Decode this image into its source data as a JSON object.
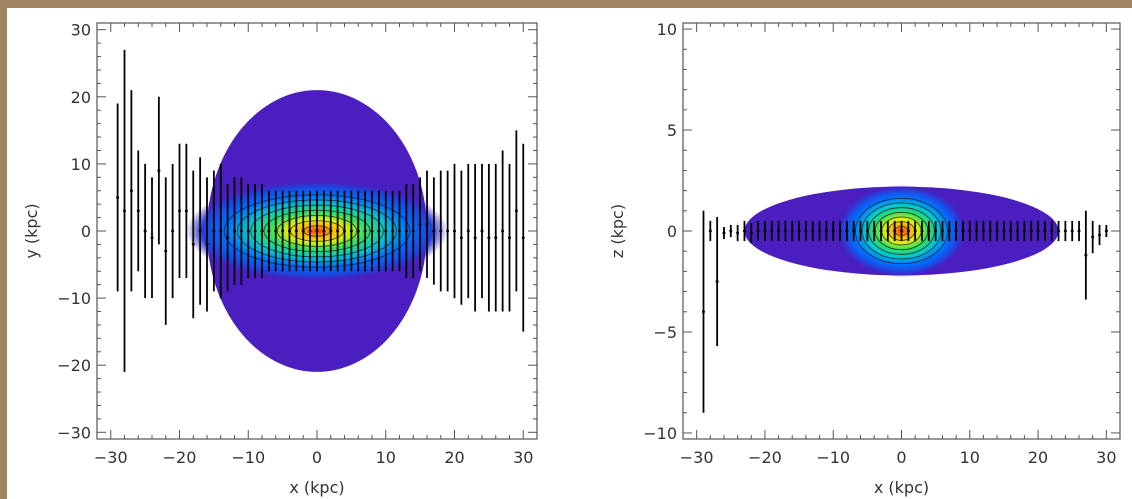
{
  "chart_data": [
    {
      "type": "density-map-with-errorbars",
      "panel": "left",
      "xlabel": "x (kpc)",
      "ylabel": "y (kpc)",
      "xlim": [
        -32,
        32
      ],
      "ylim": [
        -31,
        31
      ],
      "xticks": [
        -30,
        -20,
        -10,
        0,
        10,
        20,
        30
      ],
      "yticks": [
        -30,
        -20,
        -10,
        0,
        10,
        20,
        30
      ],
      "xtick_labels": [
        "−30",
        "−20",
        "−10",
        "0",
        "10",
        "20",
        "30"
      ],
      "ytick_labels": [
        "−30",
        "−20",
        "−10",
        "0",
        "10",
        "20",
        "30"
      ],
      "density": {
        "center": [
          0,
          0
        ],
        "outer_rx": 16,
        "outer_ry": 21,
        "core_rx": 10,
        "core_ry": 4
      },
      "errorbars": {
        "x": [
          -29,
          -28,
          -27,
          -26,
          -25,
          -24,
          -23,
          -22,
          -21,
          -20,
          -19,
          -18,
          -17,
          -16,
          -15,
          -14,
          -13,
          -12,
          -11,
          -10,
          -9,
          -8,
          -7,
          -6,
          -5,
          -4,
          -3,
          -2,
          -1,
          0,
          1,
          2,
          3,
          4,
          5,
          6,
          7,
          8,
          9,
          10,
          11,
          12,
          13,
          14,
          15,
          16,
          17,
          18,
          19,
          20,
          21,
          22,
          23,
          24,
          25,
          26,
          27,
          28,
          29,
          30
        ],
        "y": [
          5,
          3,
          6,
          3,
          0,
          -1,
          9,
          -3,
          0,
          3,
          3,
          -2,
          0,
          -2,
          0,
          0,
          -1,
          0,
          0,
          0,
          0,
          0,
          0,
          0,
          0,
          0,
          0,
          0,
          0,
          0,
          0,
          0,
          0,
          0,
          0,
          0,
          0,
          0,
          0,
          0,
          0,
          0,
          0,
          0,
          1,
          1,
          0,
          0,
          0,
          0,
          -1,
          0,
          -1,
          0,
          -1,
          -1,
          0,
          -1,
          3,
          -1
        ],
        "err": [
          14,
          24,
          15,
          9,
          10,
          9,
          11,
          11,
          10,
          10,
          10,
          11,
          11,
          10,
          9,
          10,
          8,
          8,
          8,
          7,
          7,
          7,
          6,
          6,
          6,
          6,
          6,
          6,
          6,
          6,
          6,
          6,
          6,
          6,
          6,
          6,
          6,
          6,
          6,
          6,
          6,
          6,
          7,
          7,
          7,
          8,
          8,
          9,
          9,
          10,
          10,
          10,
          11,
          10,
          11,
          11,
          12,
          11,
          12,
          14
        ]
      }
    },
    {
      "type": "density-map-with-errorbars",
      "panel": "right",
      "xlabel": "x (kpc)",
      "ylabel": "z (kpc)",
      "xlim": [
        -32,
        32
      ],
      "ylim": [
        -10.3,
        10.3
      ],
      "xticks": [
        -30,
        -20,
        -10,
        0,
        10,
        20,
        30
      ],
      "yticks": [
        -10,
        -5,
        0,
        5,
        10
      ],
      "xtick_labels": [
        "−30",
        "−20",
        "−10",
        "0",
        "10",
        "20",
        "30"
      ],
      "ytick_labels": [
        "−10",
        "−5",
        "0",
        "5",
        "10"
      ],
      "density": {
        "center": [
          0,
          0
        ],
        "outer_rx": 23,
        "outer_ry": 2.2,
        "core_rx": 5,
        "core_ry": 1.2
      },
      "errorbars": {
        "x": [
          -29,
          -28,
          -27,
          -26,
          -25,
          -24,
          -23,
          -22,
          -21,
          -20,
          -19,
          -18,
          -17,
          -16,
          -15,
          -14,
          -13,
          -12,
          -11,
          -10,
          -9,
          -8,
          -7,
          -6,
          -5,
          -4,
          -3,
          -2,
          -1,
          0,
          1,
          2,
          3,
          4,
          5,
          6,
          7,
          8,
          9,
          10,
          11,
          12,
          13,
          14,
          15,
          16,
          17,
          18,
          19,
          20,
          21,
          22,
          23,
          24,
          25,
          26,
          27,
          28,
          29,
          30
        ],
        "y": [
          -4,
          0,
          -2.5,
          -0.1,
          0,
          -0.1,
          0,
          -0.1,
          0,
          0,
          0,
          0,
          0,
          0,
          0,
          0,
          0,
          0,
          0,
          0,
          0,
          0,
          0,
          0,
          0,
          0,
          0,
          0,
          0,
          0,
          0,
          0,
          0,
          0,
          0,
          0,
          0,
          0,
          0,
          0,
          0,
          0,
          0,
          0,
          0,
          0,
          0,
          0,
          0,
          0,
          0,
          0,
          0,
          0,
          0,
          0,
          -1.2,
          -0.3,
          -0.2,
          0
        ],
        "err": [
          5,
          0.5,
          3.2,
          0.3,
          0.3,
          0.4,
          0.5,
          0.5,
          0.5,
          0.5,
          0.5,
          0.5,
          0.5,
          0.5,
          0.5,
          0.5,
          0.5,
          0.5,
          0.5,
          0.5,
          0.5,
          0.5,
          0.5,
          0.5,
          0.5,
          0.5,
          0.5,
          0.5,
          0.5,
          0.5,
          0.5,
          0.5,
          0.5,
          0.5,
          0.5,
          0.5,
          0.5,
          0.5,
          0.5,
          0.5,
          0.5,
          0.5,
          0.5,
          0.5,
          0.5,
          0.5,
          0.5,
          0.5,
          0.5,
          0.5,
          0.5,
          0.5,
          0.5,
          0.5,
          0.5,
          0.5,
          2.2,
          0.8,
          0.5,
          0.3
        ]
      }
    }
  ]
}
